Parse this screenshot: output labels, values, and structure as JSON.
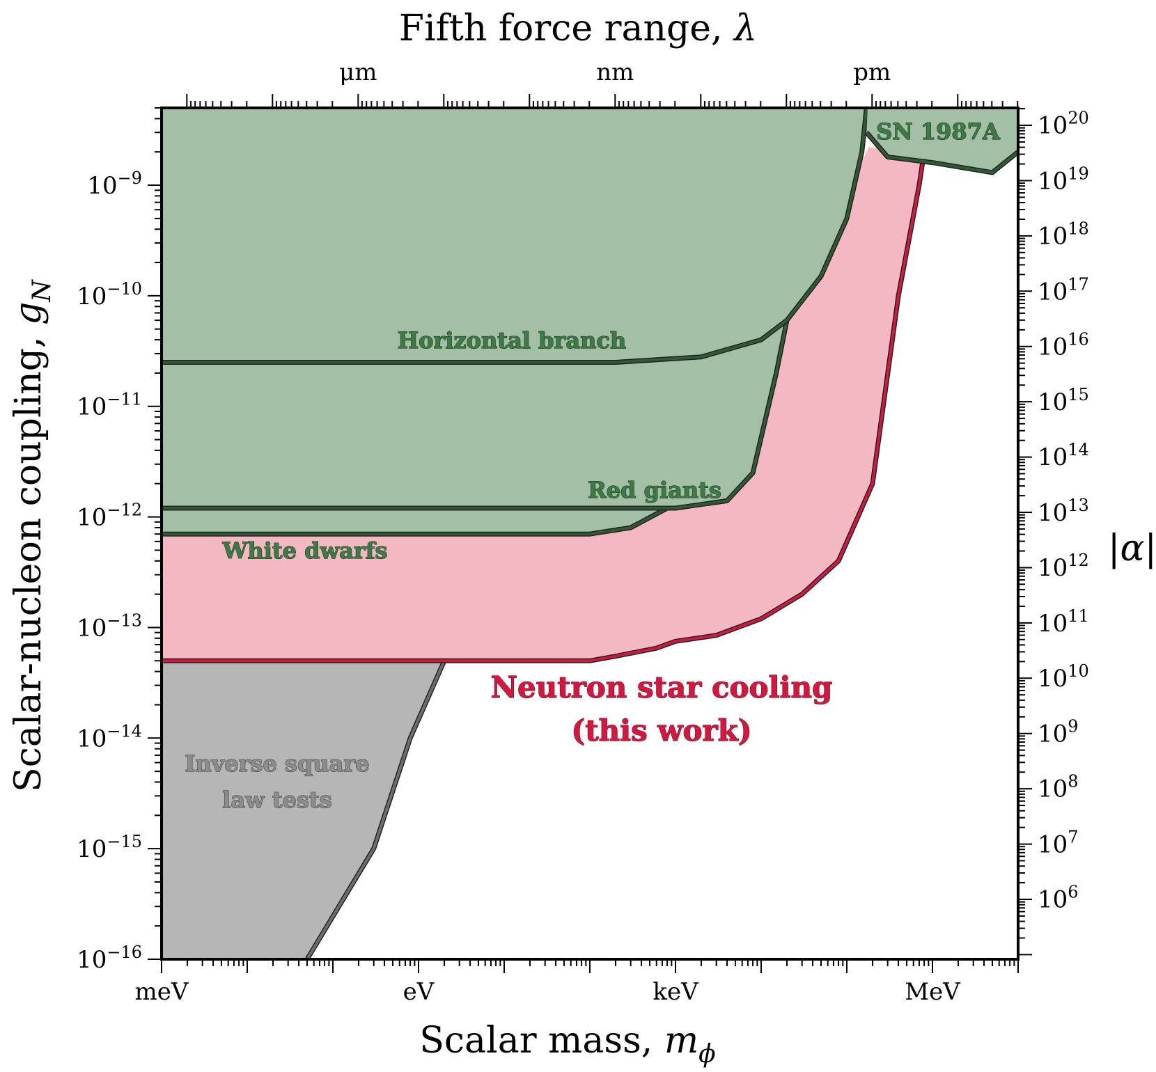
{
  "chart_data": {
    "type": "area",
    "x_label": "Scalar mass, ",
    "x_label_symbol": "m",
    "x_label_subscript": "ϕ",
    "x_scale": "log",
    "x_unit": "eV",
    "x_lim": [
      0.001,
      10000000.0
    ],
    "x_ticks": [
      {
        "value": 0.001,
        "label": "meV"
      },
      {
        "value": 1,
        "label": "eV"
      },
      {
        "value": 1000,
        "label": "keV"
      },
      {
        "value": 1000000,
        "label": "MeV"
      }
    ],
    "top_label": "Fifth force range, ",
    "top_label_symbol": "λ",
    "top_ticks": [
      {
        "value": 0.1973,
        "label": "μm"
      },
      {
        "value": 197.3,
        "label": "nm"
      },
      {
        "value": 197300,
        "label": "pm"
      }
    ],
    "y_label": "Scalar-nucleon coupling, ",
    "y_label_symbol": "g",
    "y_label_subscript": "N",
    "y_scale": "log",
    "y_lim": [
      1e-16,
      5e-09
    ],
    "y_ticks": [
      {
        "value": 1e-09,
        "base": "10",
        "exp": "−9"
      },
      {
        "value": 1e-10,
        "base": "10",
        "exp": "−10"
      },
      {
        "value": 1e-11,
        "base": "10",
        "exp": "−11"
      },
      {
        "value": 1e-12,
        "base": "10",
        "exp": "−12"
      },
      {
        "value": 1e-13,
        "base": "10",
        "exp": "−13"
      },
      {
        "value": 1e-14,
        "base": "10",
        "exp": "−14"
      },
      {
        "value": 1e-15,
        "base": "10",
        "exp": "−15"
      },
      {
        "value": 1e-16,
        "base": "10",
        "exp": "−16"
      }
    ],
    "right_label": "|α|",
    "right_ticks": [
      {
        "value": 3.5e-09,
        "base": "10",
        "exp": "20"
      },
      {
        "value": 1.1e-09,
        "base": "10",
        "exp": "19"
      },
      {
        "value": 3.5e-10,
        "base": "10",
        "exp": "18"
      },
      {
        "value": 1.1e-10,
        "base": "10",
        "exp": "17"
      },
      {
        "value": 3.5e-11,
        "base": "10",
        "exp": "16"
      },
      {
        "value": 1.1e-11,
        "base": "10",
        "exp": "15"
      },
      {
        "value": 3.5e-12,
        "base": "10",
        "exp": "14"
      },
      {
        "value": 1.1e-12,
        "base": "10",
        "exp": "13"
      },
      {
        "value": 3.5e-13,
        "base": "10",
        "exp": "12"
      },
      {
        "value": 1.1e-13,
        "base": "10",
        "exp": "11"
      },
      {
        "value": 3.5e-14,
        "base": "10",
        "exp": "10"
      },
      {
        "value": 1.1e-14,
        "base": "10",
        "exp": "9"
      },
      {
        "value": 3.5e-15,
        "base": "10",
        "exp": "8"
      },
      {
        "value": 1.1e-15,
        "base": "10",
        "exp": "7"
      },
      {
        "value": 3.5e-16,
        "base": "10",
        "exp": "6"
      }
    ],
    "series": [
      {
        "name": "Inverse square law tests",
        "fill": "#b7b6b7",
        "stroke": "#6e6e6e",
        "boundary": [
          [
            0.05,
            1e-16
          ],
          [
            0.3,
            1e-15
          ],
          [
            0.8,
            1e-14
          ],
          [
            2.0,
            5e-14
          ]
        ]
      },
      {
        "name": "Neutron star cooling (this work)",
        "fill": "#f4b8c3",
        "stroke": "#d2183f",
        "boundary": [
          [
            0.001,
            5e-14
          ],
          [
            100,
            5e-14
          ],
          [
            200,
            5.5e-14
          ],
          [
            600,
            6.5e-14
          ],
          [
            1000,
            7.5e-14
          ],
          [
            3000,
            8.5e-14
          ],
          [
            10000,
            1.2e-13
          ],
          [
            30000,
            2e-13
          ],
          [
            80000,
            4e-13
          ],
          [
            200000,
            2e-12
          ],
          [
            400000,
            1e-10
          ],
          [
            700000,
            1e-09
          ],
          [
            800000,
            2e-09
          ]
        ]
      },
      {
        "name": "White dwarfs",
        "fill": "#a3bfa6",
        "stroke": "#2f5a34",
        "boundary": [
          [
            0.001,
            7e-13
          ],
          [
            100,
            7e-13
          ],
          [
            300,
            8e-13
          ],
          [
            800,
            1.2e-12
          ]
        ]
      },
      {
        "name": "Red giants",
        "fill": "#a3bfa6",
        "stroke": "#2f5a34",
        "boundary": [
          [
            0.001,
            1.2e-12
          ],
          [
            1000,
            1.2e-12
          ],
          [
            4000,
            1.4e-12
          ],
          [
            8000,
            2.5e-12
          ],
          [
            15000,
            2e-11
          ],
          [
            20000,
            6e-11
          ]
        ]
      },
      {
        "name": "Horizontal branch",
        "fill": "#a3bfa6",
        "stroke": "#2f5a34",
        "boundary": [
          [
            0.001,
            2.5e-11
          ],
          [
            200,
            2.5e-11
          ],
          [
            2000,
            2.8e-11
          ],
          [
            10000,
            4e-11
          ],
          [
            20000,
            6e-11
          ],
          [
            50000,
            1.5e-10
          ],
          [
            100000,
            5e-10
          ],
          [
            150000,
            2e-09
          ],
          [
            170000,
            5e-09
          ]
        ]
      },
      {
        "name": "SN 1987A",
        "fill": "#a3bfa6",
        "stroke": "#2f5a34",
        "boundary": [
          [
            170000,
            3e-09
          ],
          [
            300000,
            1.8e-09
          ],
          [
            1000000,
            1.6e-09
          ],
          [
            5000000,
            1.3e-09
          ],
          [
            10000000,
            2e-09
          ]
        ]
      }
    ],
    "annotations": [
      {
        "text": "Horizontal branch",
        "color": "#3e7a45",
        "stroke": "#1f3f23"
      },
      {
        "text": "Red giants",
        "color": "#3e7a45",
        "stroke": "#1f3f23"
      },
      {
        "text": "White dwarfs",
        "color": "#3e7a45",
        "stroke": "#1f3f23"
      },
      {
        "text": "SN 1987A",
        "color": "#3e7a45",
        "stroke": "#1f3f23"
      },
      {
        "text": "Inverse square",
        "color": "#8c8c8c",
        "stroke": "#4a4a4a"
      },
      {
        "text": "law tests",
        "color": "#8c8c8c",
        "stroke": "#4a4a4a"
      },
      {
        "text": "Neutron star cooling",
        "color": "#d2183f",
        "stroke": "#7a0d24"
      },
      {
        "text": "(this work)",
        "color": "#d2183f",
        "stroke": "#7a0d24"
      }
    ],
    "grid": false
  }
}
